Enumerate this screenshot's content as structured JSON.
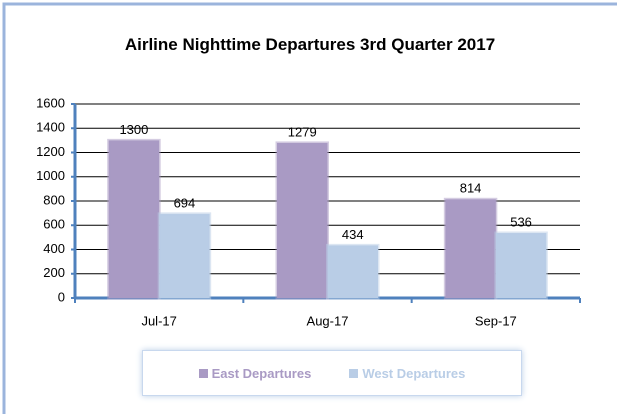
{
  "chart_data": {
    "type": "bar",
    "title": "Airline Nighttime Departures 3rd Quarter 2017",
    "categories": [
      "Jul-17",
      "Aug-17",
      "Sep-17"
    ],
    "series": [
      {
        "name": "East Departures",
        "color": "#a99ac4",
        "values": [
          1300,
          1279,
          814
        ]
      },
      {
        "name": "West Departures",
        "color": "#b9cde6",
        "values": [
          694,
          434,
          536
        ]
      }
    ],
    "ylim": [
      0,
      1600
    ],
    "yticks": [
      0,
      200,
      400,
      600,
      800,
      1000,
      1200,
      1400,
      1600
    ],
    "grid": true,
    "legend": "bottom"
  }
}
